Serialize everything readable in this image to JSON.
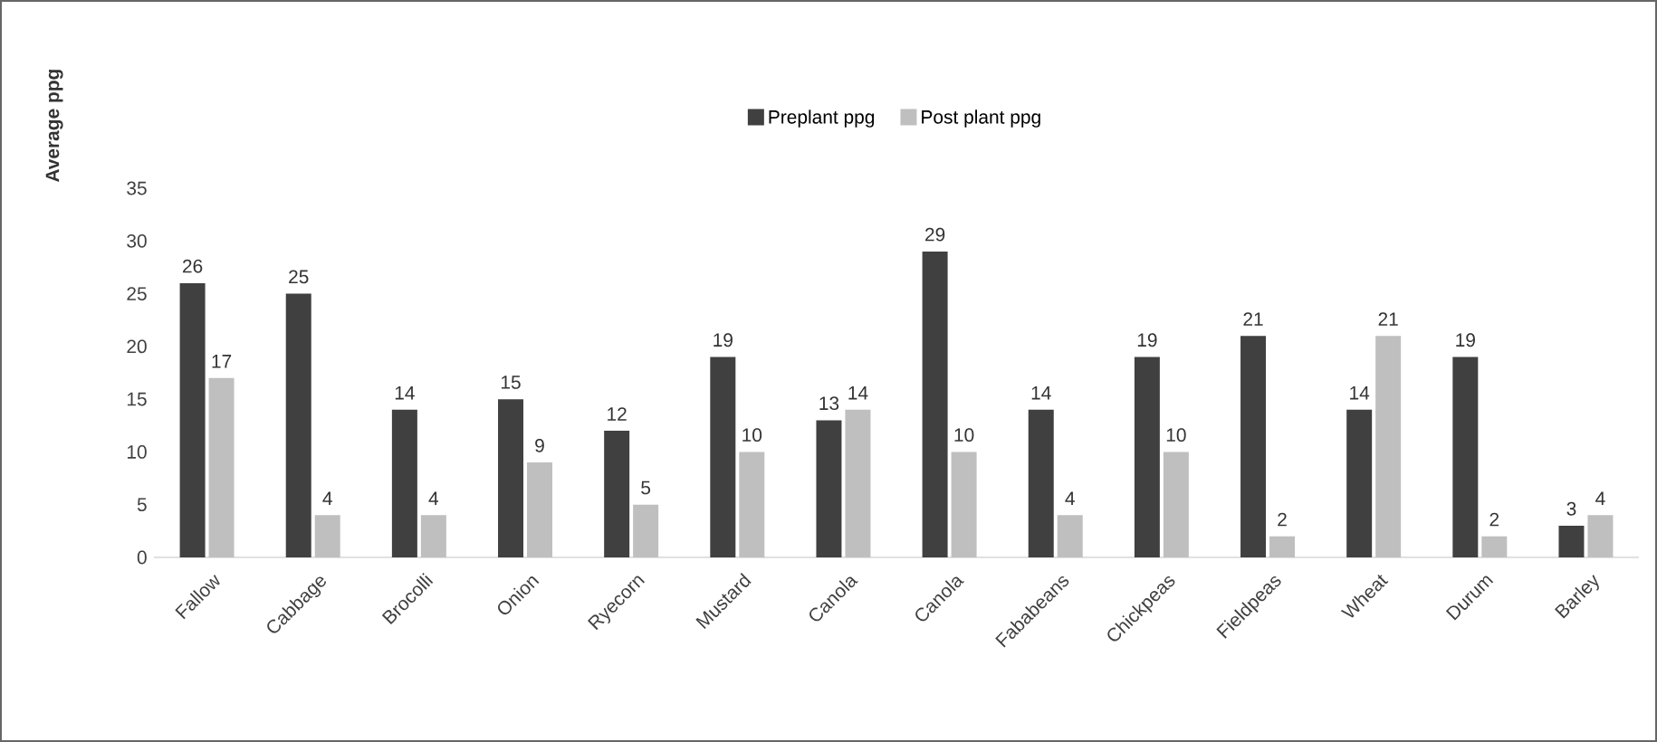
{
  "chart_data": {
    "type": "bar",
    "ylabel": "Average ppg",
    "categories": [
      "Fallow",
      "Cabbage",
      "Brocolli",
      "Onion",
      "Ryecorn",
      "Mustard",
      "Canola",
      "Canola",
      "Fababeans",
      "Chickpeas",
      "Fieldpeas",
      "Wheat",
      "Durum",
      "Barley"
    ],
    "series": [
      {
        "name": "Preplant ppg",
        "color": "#404040",
        "values": [
          26,
          25,
          14,
          15,
          12,
          19,
          13,
          29,
          14,
          19,
          21,
          14,
          19,
          3
        ]
      },
      {
        "name": "Post plant ppg",
        "color": "#bfbfbf",
        "values": [
          17,
          4,
          4,
          9,
          5,
          10,
          14,
          10,
          4,
          10,
          2,
          21,
          2,
          4
        ]
      }
    ],
    "ylim": [
      0,
      35
    ],
    "yticks": [
      0,
      5,
      10,
      15,
      20,
      25,
      30,
      35
    ],
    "data_labels": true,
    "legend": "top",
    "grid": false
  }
}
